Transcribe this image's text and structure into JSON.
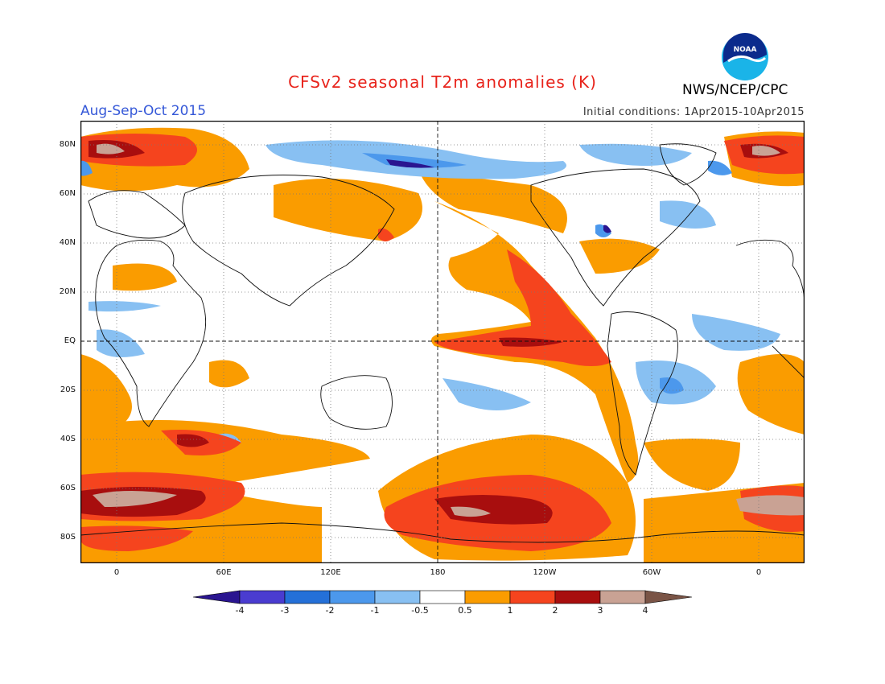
{
  "header": {
    "title": "CFSv2 seasonal T2m anomalies (K)",
    "season": "Aug-Sep-Oct 2015",
    "initial_conditions": "Initial conditions: 1Apr2015-10Apr2015",
    "agency": "NWS/NCEP/CPC",
    "logo_text": "NOAA"
  },
  "map": {
    "lat_labels": [
      "80N",
      "60N",
      "40N",
      "20N",
      "EQ",
      "20S",
      "40S",
      "60S",
      "80S"
    ],
    "lon_labels": [
      "0",
      "60E",
      "120E",
      "180",
      "120W",
      "60W",
      "0"
    ]
  },
  "colorbar": {
    "labels": [
      "-4",
      "-3",
      "-2",
      "-1",
      "-0.5",
      "0.5",
      "1",
      "2",
      "3",
      "4"
    ],
    "colors": [
      "#2a1590",
      "#4a3cd0",
      "#2470d8",
      "#4c98ec",
      "#88c0f2",
      "#ffffff",
      "#fa9c00",
      "#f5441e",
      "#a80e0e",
      "#c9a294",
      "#7a5446"
    ]
  },
  "colors": {
    "warm1": "#fa9c00",
    "warm2": "#f5441e",
    "warm3": "#a80e0e",
    "warm4": "#c9a294",
    "warm5": "#7a5446",
    "cool1": "#88c0f2",
    "cool2": "#4c98ec",
    "cool3": "#2470d8",
    "cool4": "#4a3cd0"
  }
}
